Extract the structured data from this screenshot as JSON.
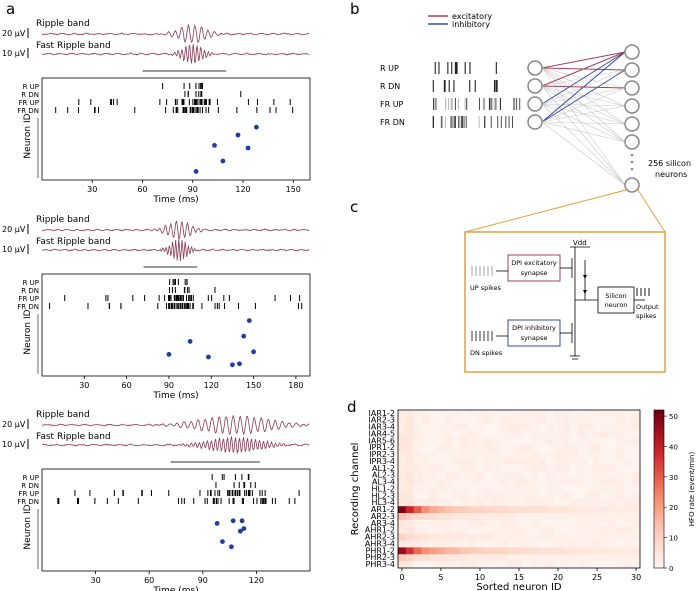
{
  "panel_a": {
    "label": "a",
    "rows": [
      {
        "ripple_label": "Ripple band",
        "fast_label": "Fast Ripple band",
        "ripple_scale": "20 μV",
        "fast_scale": "10 μV",
        "raster_labels": [
          "R UP",
          "R DN",
          "FR UP",
          "FR DN"
        ],
        "neuron_axis_label": "Neuron ID",
        "time_label": "Time (ms)",
        "ticks": [
          "30",
          "60",
          "90",
          "120",
          "150"
        ],
        "tmax": 160,
        "burst_center": 90,
        "burst_width": 5,
        "fr_burst_width": 7,
        "ripple_amp": 1.0,
        "fast_amp": 1.0,
        "bar_range": [
          60,
          110
        ],
        "dots": [
          [
            103,
            0.45
          ],
          [
            108,
            0.75
          ],
          [
            117,
            0.25
          ],
          [
            123,
            0.5
          ],
          [
            128,
            0.1
          ],
          [
            92,
            0.95
          ]
        ]
      },
      {
        "ripple_label": "Ripple band",
        "fast_label": "Fast Ripple band",
        "ripple_scale": "20 μV",
        "fast_scale": "10 μV",
        "raster_labels": [
          "R UP",
          "R DN",
          "FR UP",
          "FR DN"
        ],
        "neuron_axis_label": "Neuron ID",
        "time_label": "Time (ms)",
        "ticks": [
          "30",
          "60",
          "90",
          "120",
          "150",
          "180"
        ],
        "tmax": 190,
        "burst_center": 97,
        "burst_width": 5,
        "fr_burst_width": 7,
        "ripple_amp": 1.0,
        "fast_amp": 1.1,
        "bar_range": [
          72,
          110
        ],
        "dots": [
          [
            147,
            0.05
          ],
          [
            143,
            0.35
          ],
          [
            105,
            0.45
          ],
          [
            150,
            0.65
          ],
          [
            90,
            0.7
          ],
          [
            118,
            0.75
          ],
          [
            135,
            0.9
          ],
          [
            140,
            0.88
          ]
        ]
      },
      {
        "ripple_label": "Ripple band",
        "fast_label": "Fast Ripple band",
        "ripple_scale": "20 μV",
        "fast_scale": "10 μV",
        "raster_labels": [
          "R UP",
          "R DN",
          "FR UP",
          "FR DN"
        ],
        "neuron_axis_label": "Neuron ID",
        "time_label": "Time (ms)",
        "ticks": [
          "30",
          "60",
          "90",
          "120"
        ],
        "tmax": 150,
        "burst_center": 108,
        "burst_width": 12,
        "fr_burst_width": 12,
        "ripple_amp": 1.0,
        "fast_amp": 0.8,
        "bar_range": [
          72,
          122
        ],
        "dots": [
          [
            98,
            0.2
          ],
          [
            107,
            0.15
          ],
          [
            112,
            0.15
          ],
          [
            113,
            0.3
          ],
          [
            101,
            0.55
          ],
          [
            111,
            0.35
          ],
          [
            106,
            0.65
          ]
        ]
      }
    ]
  },
  "panel_b": {
    "label": "b",
    "legend": {
      "excitatory": "excitatory",
      "inhibitory": "inhibitory"
    },
    "inputs": [
      "R UP",
      "R DN",
      "FR  UP",
      "FR DN"
    ],
    "neuron_count_label": "256 silicon",
    "neuron_count_label2": "neurons",
    "colors": {
      "excitatory": "#a0425a",
      "inhibitory": "#3a4a9a",
      "conn": "#c8c8c8"
    }
  },
  "panel_c": {
    "label": "c",
    "vdd": "Vdd",
    "dpi_exc": "DPI excitatory",
    "dpi_exc2": "synapse",
    "dpi_inh": "DPI inhibitory",
    "dpi_inh2": "synapse",
    "up_spikes": "UP spikes",
    "dn_spikes": "DN spikes",
    "silicon": "Silicon",
    "silicon2": "neuron",
    "output": "Output",
    "output2": "spikes",
    "colors": {
      "frame": "#e0a040",
      "exc_box": "#a0425a",
      "inh_box": "#3a4a9a"
    }
  },
  "panel_d": {
    "label": "d",
    "chart_data": {
      "type": "heatmap",
      "title": "",
      "xlabel": "Sorted neuron ID",
      "ylabel": "Recording channel",
      "x_ticks": [
        "0",
        "5",
        "10",
        "15",
        "20",
        "25",
        "30"
      ],
      "x_range": [
        0,
        31
      ],
      "rows": [
        "IAR1-2",
        "IAR2-3",
        "IAR3-4",
        "IAR4-5",
        "IAR5-6",
        "IPR1-2",
        "IPR2-3",
        "IPR3-4",
        "AL1-2",
        "AL2-3",
        "AL3-4",
        "HL1-2",
        "HL2-3",
        "HL3-4",
        "AR1-2",
        "AR2-3",
        "AR3-4",
        "AHR1-2",
        "AHR2-3",
        "AHR3-4",
        "PHR1-2",
        "PHR2-3",
        "PHR3-4"
      ],
      "colorbar_label": "HFO rate (event/min)",
      "colorbar_ticks": [
        "0",
        "10",
        "20",
        "30",
        "40",
        "50"
      ],
      "zlim": [
        0,
        52
      ],
      "strong_rows": {
        "AR1-2": [
          50,
          38,
          30,
          22,
          18,
          16,
          14,
          12,
          12,
          10,
          10,
          9,
          8,
          8,
          7,
          7,
          6,
          6,
          6,
          5,
          5,
          5,
          4,
          4,
          4,
          4,
          4,
          3,
          3,
          3,
          3
        ],
        "PHR1-2": [
          46,
          36,
          28,
          22,
          20,
          18,
          16,
          15,
          13,
          12,
          11,
          10,
          9,
          9,
          8,
          8,
          7,
          7,
          6,
          6,
          6,
          5,
          5,
          5,
          4,
          4,
          4,
          3,
          3,
          3,
          3
        ],
        "AR2-3": [
          14,
          10,
          8,
          7,
          6,
          5,
          5,
          4,
          4,
          4,
          3,
          3,
          3,
          3,
          3,
          2,
          2,
          2,
          2,
          2,
          2,
          2,
          2,
          2,
          2,
          2,
          2,
          2,
          2,
          2,
          2
        ],
        "PHR2-3": [
          12,
          9,
          7,
          6,
          5,
          5,
          4,
          4,
          4,
          3,
          3,
          3,
          3,
          3,
          2,
          2,
          2,
          2,
          2,
          2,
          2,
          2,
          2,
          2,
          2,
          2,
          2,
          2,
          2,
          2,
          2
        ],
        "AHR2-3": [
          10,
          7,
          6,
          5,
          4,
          4,
          4,
          3,
          3,
          3,
          3,
          3,
          2,
          2,
          2,
          2,
          2,
          2,
          2,
          2,
          2,
          2,
          2,
          2,
          2,
          2,
          2,
          2,
          2,
          2,
          2
        ]
      }
    }
  }
}
